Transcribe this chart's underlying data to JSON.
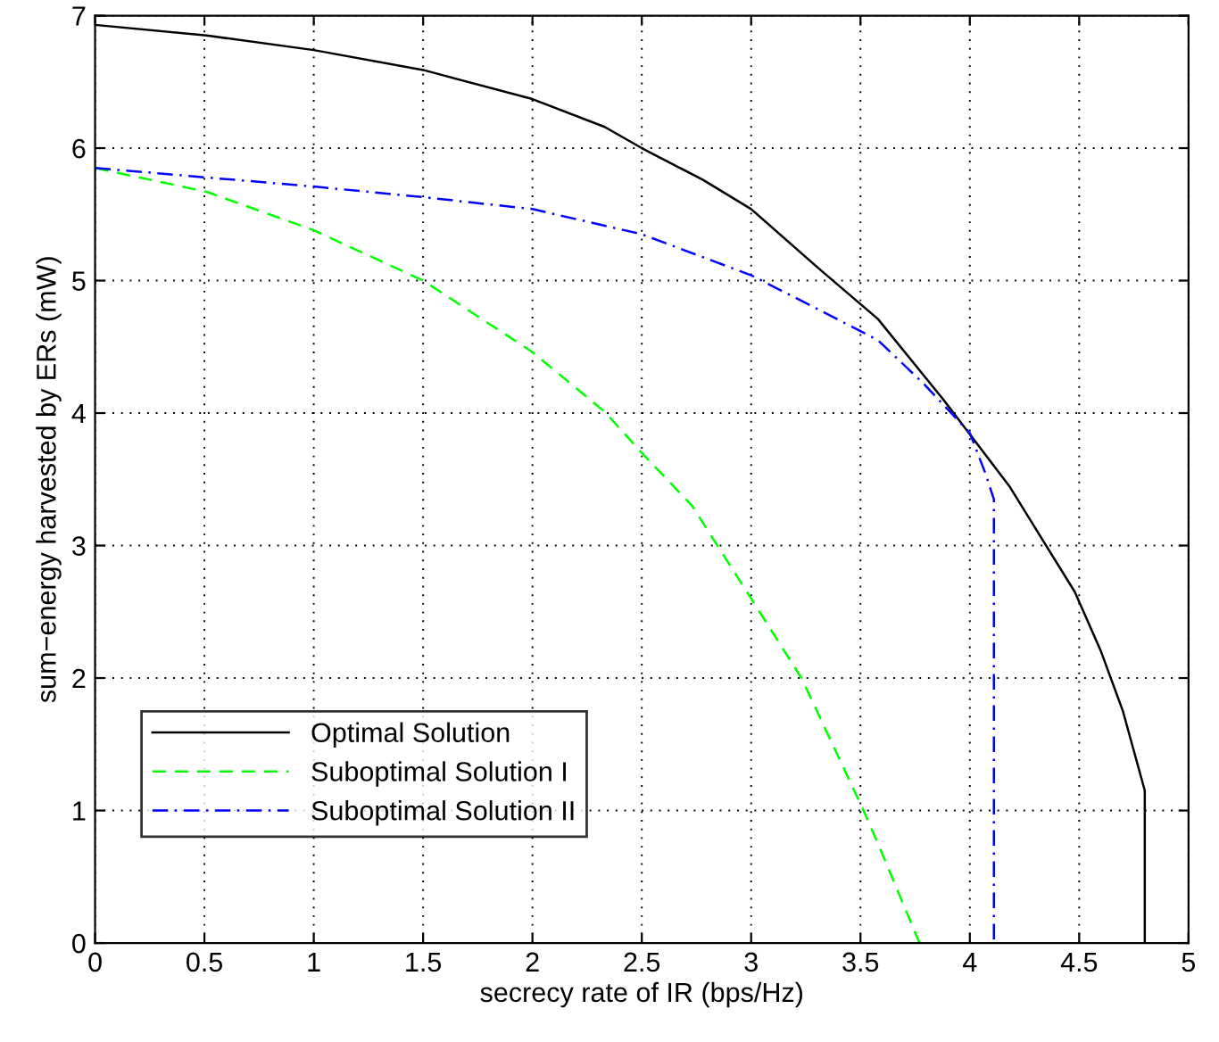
{
  "chart_data": {
    "type": "line",
    "xlabel": "secrecy rate of IR (bps/Hz)",
    "ylabel": "sum−energy harvested by ERs (mW)",
    "xlim": [
      0,
      5
    ],
    "ylim": [
      0,
      7
    ],
    "xticks": [
      0,
      0.5,
      1,
      1.5,
      2,
      2.5,
      3,
      3.5,
      4,
      4.5,
      5
    ],
    "yticks": [
      0,
      1,
      2,
      3,
      4,
      5,
      6,
      7
    ],
    "grid": true,
    "legend": "bottom left",
    "series": [
      {
        "name": "Optimal Solution",
        "color": "#000000",
        "line_style": "solid",
        "x": [
          0,
          0.51,
          1,
          1.5,
          2,
          2.33,
          2.5,
          2.78,
          3,
          3.31,
          3.58,
          3.88,
          4.18,
          4.33,
          4.48,
          4.6,
          4.7,
          4.8,
          4.8
        ],
        "values": [
          6.93,
          6.85,
          6.74,
          6.59,
          6.37,
          6.16,
          6.0,
          5.76,
          5.54,
          5.09,
          4.71,
          4.1,
          3.45,
          3.05,
          2.65,
          2.2,
          1.75,
          1.15,
          0
        ]
      },
      {
        "name": "Suboptimal Solution I",
        "color": "#00ff00",
        "line_style": "dashed",
        "x": [
          0,
          0.51,
          1,
          1.5,
          2,
          2.33,
          2.5,
          2.73,
          3,
          3.23,
          3.5,
          3.58,
          3.77
        ],
        "values": [
          5.85,
          5.67,
          5.38,
          5.0,
          4.46,
          4.01,
          3.7,
          3.3,
          2.6,
          2.0,
          1.05,
          0.75,
          0
        ]
      },
      {
        "name": "Suboptimal Solution II",
        "color": "#0000ff",
        "line_style": "dashdot",
        "x": [
          0,
          1,
          1.5,
          2,
          2.5,
          3,
          3.31,
          3.58,
          3.79,
          4.0,
          4.07,
          4.11,
          4.11
        ],
        "values": [
          5.85,
          5.71,
          5.63,
          5.54,
          5.35,
          5.04,
          4.78,
          4.55,
          4.22,
          3.85,
          3.55,
          3.35,
          0
        ]
      }
    ]
  }
}
